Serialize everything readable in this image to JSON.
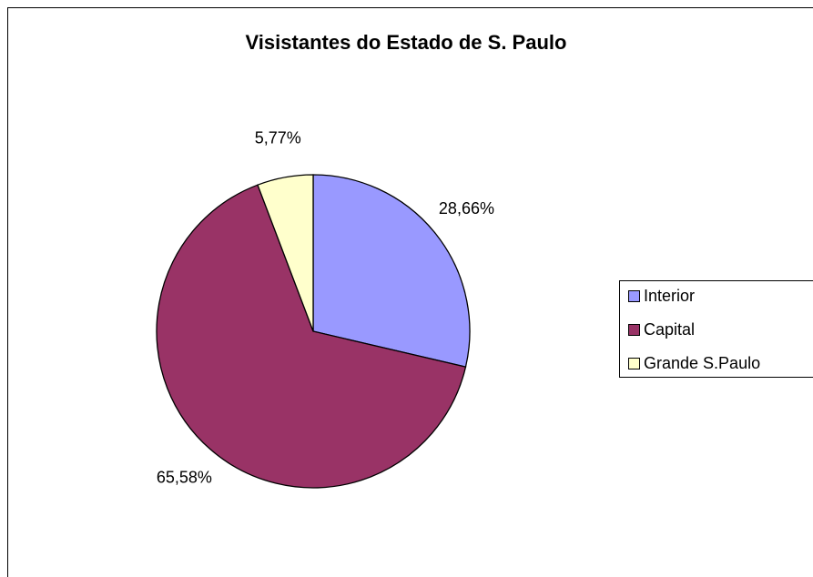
{
  "chart_data": {
    "type": "pie",
    "title": "Visistantes do Estado de S. Paulo",
    "categories": [
      "Interior",
      "Capital",
      "Grande S.Paulo"
    ],
    "values": [
      28.66,
      65.58,
      5.77
    ],
    "value_labels": [
      "28,66%",
      "65,58%",
      "5,77%"
    ],
    "colors": [
      "#9999ff",
      "#993366",
      "#ffffcc"
    ],
    "legend": "right"
  }
}
